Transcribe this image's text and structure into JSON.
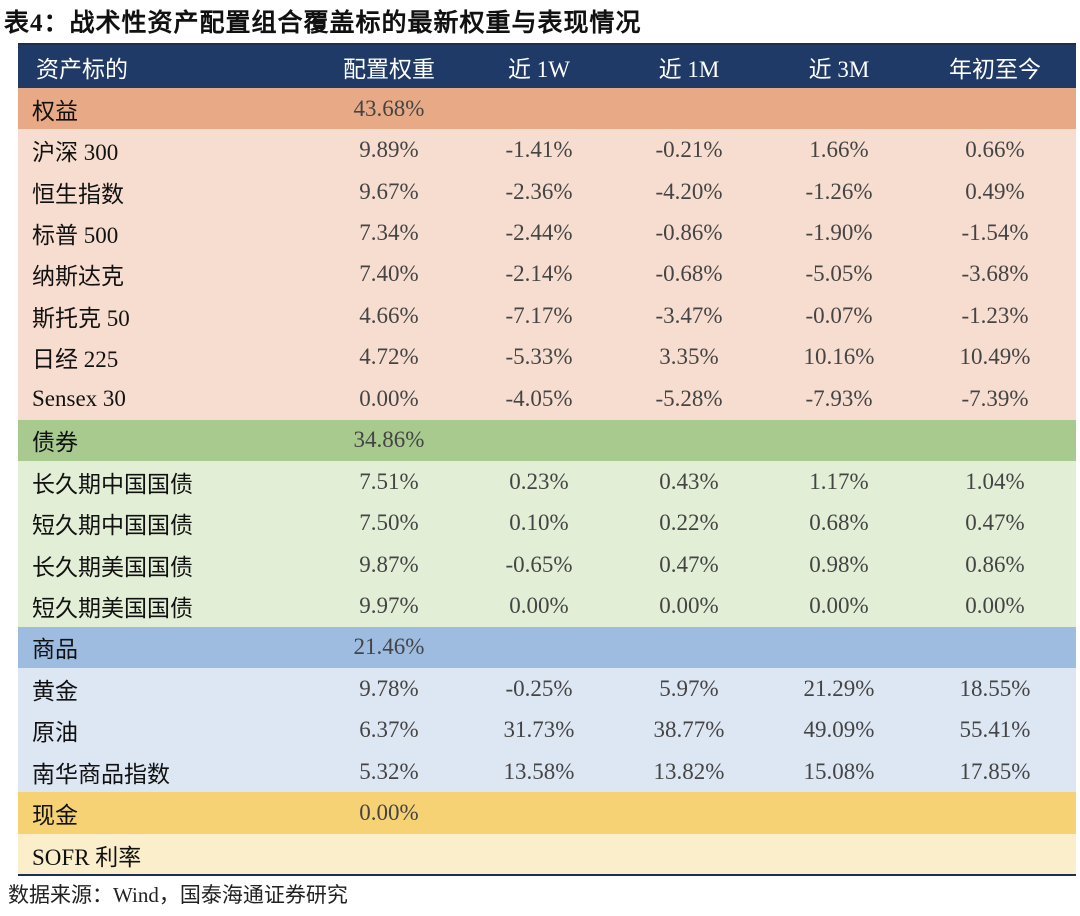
{
  "title": "表4：战术性资产配置组合覆盖标的最新权重与表现情况",
  "columns": [
    "资产标的",
    "配置权重",
    "近 1W",
    "近 1M",
    "近 3M",
    "年初至今"
  ],
  "groups": [
    {
      "name": "权益",
      "weight": "43.68%",
      "rows": [
        {
          "name": "沪深 300",
          "weight": "9.89%",
          "w1": "-1.41%",
          "m1": "-0.21%",
          "m3": "1.66%",
          "ytd": "0.66%"
        },
        {
          "name": "恒生指数",
          "weight": "9.67%",
          "w1": "-2.36%",
          "m1": "-4.20%",
          "m3": "-1.26%",
          "ytd": "0.49%"
        },
        {
          "name": "标普 500",
          "weight": "7.34%",
          "w1": "-2.44%",
          "m1": "-0.86%",
          "m3": "-1.90%",
          "ytd": "-1.54%"
        },
        {
          "name": "纳斯达克",
          "weight": "7.40%",
          "w1": "-2.14%",
          "m1": "-0.68%",
          "m3": "-5.05%",
          "ytd": "-3.68%"
        },
        {
          "name": "斯托克 50",
          "weight": "4.66%",
          "w1": "-7.17%",
          "m1": "-3.47%",
          "m3": "-0.07%",
          "ytd": "-1.23%"
        },
        {
          "name": "日经 225",
          "weight": "4.72%",
          "w1": "-5.33%",
          "m1": "3.35%",
          "m3": "10.16%",
          "ytd": "10.49%"
        },
        {
          "name": "Sensex 30",
          "weight": "0.00%",
          "w1": "-4.05%",
          "m1": "-5.28%",
          "m3": "-7.93%",
          "ytd": "-7.39%"
        }
      ]
    },
    {
      "name": "债券",
      "weight": "34.86%",
      "rows": [
        {
          "name": "长久期中国国债",
          "weight": "7.51%",
          "w1": "0.23%",
          "m1": "0.43%",
          "m3": "1.17%",
          "ytd": "1.04%"
        },
        {
          "name": "短久期中国国债",
          "weight": "7.50%",
          "w1": "0.10%",
          "m1": "0.22%",
          "m3": "0.68%",
          "ytd": "0.47%"
        },
        {
          "name": "长久期美国国债",
          "weight": "9.87%",
          "w1": "-0.65%",
          "m1": "0.47%",
          "m3": "0.98%",
          "ytd": "0.86%"
        },
        {
          "name": "短久期美国国债",
          "weight": "9.97%",
          "w1": "0.00%",
          "m1": "0.00%",
          "m3": "0.00%",
          "ytd": "0.00%"
        }
      ]
    },
    {
      "name": "商品",
      "weight": "21.46%",
      "rows": [
        {
          "name": "黄金",
          "weight": "9.78%",
          "w1": "-0.25%",
          "m1": "5.97%",
          "m3": "21.29%",
          "ytd": "18.55%"
        },
        {
          "name": "原油",
          "weight": "6.37%",
          "w1": "31.73%",
          "m1": "38.77%",
          "m3": "49.09%",
          "ytd": "55.41%"
        },
        {
          "name": "南华商品指数",
          "weight": "5.32%",
          "w1": "13.58%",
          "m1": "13.82%",
          "m3": "15.08%",
          "ytd": "17.85%"
        }
      ]
    },
    {
      "name": "现金",
      "weight": "0.00%",
      "rows": [
        {
          "name": "SOFR 利率",
          "weight": "",
          "w1": "",
          "m1": "",
          "m3": "",
          "ytd": ""
        }
      ]
    }
  ],
  "source": "数据来源：Wind，国泰海通证券研究"
}
